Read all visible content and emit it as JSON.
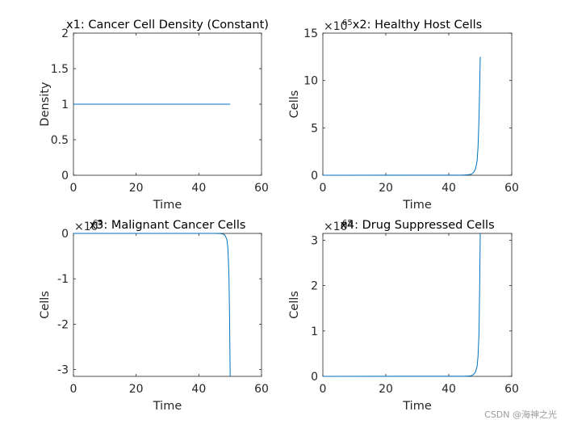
{
  "chart_data": [
    {
      "type": "line",
      "title": "x1: Cancer Cell Density (Constant)",
      "xlabel": "Time",
      "ylabel": "Density",
      "xlim": [
        0,
        60
      ],
      "ylim": [
        0,
        2
      ],
      "xticks": [
        0,
        20,
        40,
        60
      ],
      "yticks": [
        0,
        0.5,
        1,
        1.5,
        2
      ],
      "ytick_labels": [
        "0",
        "0.5",
        "1",
        "1.5",
        "2"
      ],
      "exponent": null,
      "series": [
        {
          "name": "x1",
          "x": [
            0,
            50
          ],
          "y": [
            1,
            1
          ]
        }
      ]
    },
    {
      "type": "line",
      "title": "x2: Healthy Host Cells",
      "xlabel": "Time",
      "ylabel": "Cells",
      "xlim": [
        0,
        60
      ],
      "ylim": [
        0,
        15
      ],
      "xticks": [
        0,
        20,
        40,
        60
      ],
      "yticks": [
        0,
        5,
        10,
        15
      ],
      "ytick_labels": [
        "0",
        "5",
        "10",
        "15"
      ],
      "exponent": "65",
      "series": [
        {
          "name": "x2",
          "x": [
            0,
            44,
            45,
            46,
            47,
            47.5,
            48,
            48.5,
            49,
            49.3,
            49.6,
            49.8,
            50
          ],
          "y": [
            0,
            0.02,
            0.03,
            0.05,
            0.1,
            0.18,
            0.35,
            0.7,
            1.5,
            3,
            6,
            9,
            12.5
          ]
        }
      ]
    },
    {
      "type": "line",
      "title": "x3: Malignant Cancer Cells",
      "xlabel": "Time",
      "ylabel": "Cells",
      "xlim": [
        0,
        60
      ],
      "ylim": [
        -3.15,
        0
      ],
      "xticks": [
        0,
        20,
        40,
        60
      ],
      "yticks": [
        -3,
        -2,
        -1,
        0
      ],
      "ytick_labels": [
        "-3",
        "-2",
        "-1",
        "0"
      ],
      "exponent": "65",
      "series": [
        {
          "name": "x3",
          "x": [
            0,
            45,
            47,
            48,
            48.5,
            49,
            49.3,
            49.6,
            49.8,
            50
          ],
          "y": [
            0,
            0,
            -0.005,
            -0.02,
            -0.06,
            -0.15,
            -0.35,
            -0.9,
            -1.8,
            -3.15
          ]
        }
      ]
    },
    {
      "type": "line",
      "title": "x4: Drug Suppressed Cells",
      "xlabel": "Time",
      "ylabel": "Cells",
      "xlim": [
        0,
        60
      ],
      "ylim": [
        0,
        3.15
      ],
      "xticks": [
        0,
        20,
        40,
        60
      ],
      "yticks": [
        0,
        1,
        2,
        3
      ],
      "ytick_labels": [
        "0",
        "1",
        "2",
        "3"
      ],
      "exponent": "65",
      "series": [
        {
          "name": "x4",
          "x": [
            0,
            45,
            46,
            47,
            47.5,
            48,
            48.5,
            49,
            49.3,
            49.6,
            49.8,
            50
          ],
          "y": [
            0,
            0.003,
            0.006,
            0.012,
            0.025,
            0.05,
            0.1,
            0.22,
            0.45,
            0.95,
            1.9,
            3.15
          ]
        }
      ]
    }
  ],
  "axis_font_color": "#262626",
  "line_color": "#0072bd",
  "exponent_prefix": "×10",
  "watermark": "CSDN @海神之光"
}
